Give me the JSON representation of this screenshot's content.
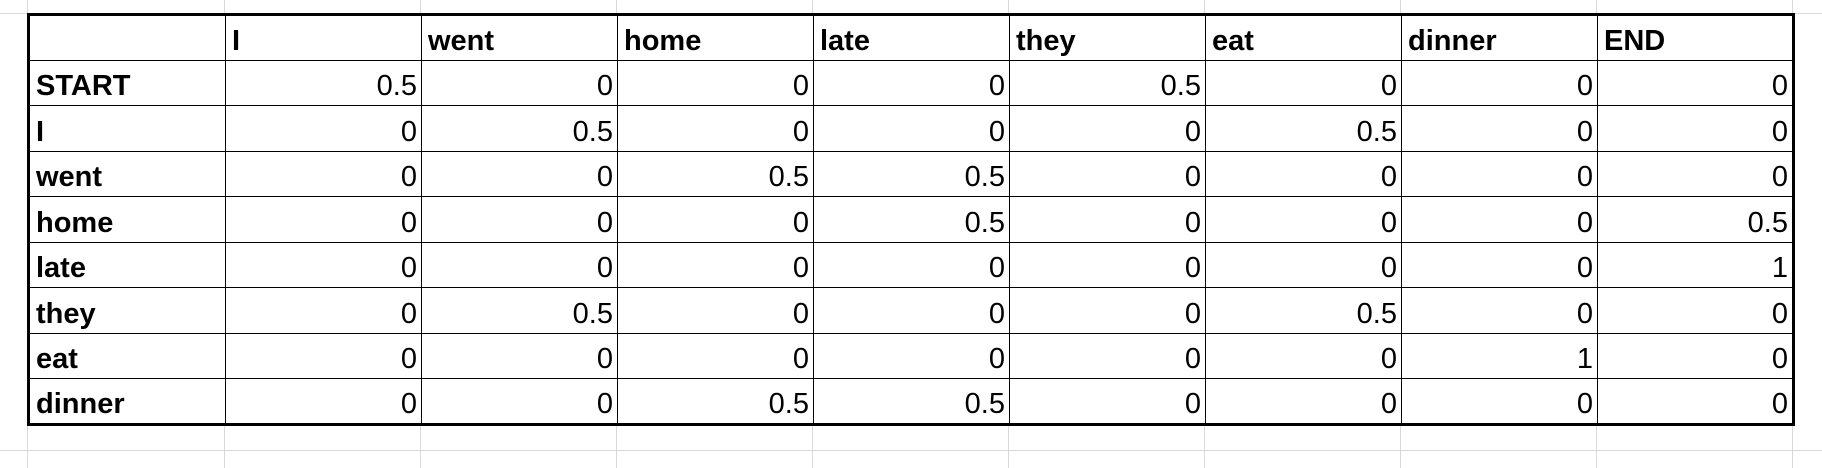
{
  "table": {
    "corner": "",
    "column_headers": [
      "I",
      "went",
      "home",
      "late",
      "they",
      "eat",
      "dinner",
      "END"
    ],
    "rows": [
      {
        "label": "START",
        "values": [
          "0.5",
          "0",
          "0",
          "0",
          "0.5",
          "0",
          "0",
          "0"
        ]
      },
      {
        "label": "I",
        "values": [
          "0",
          "0.5",
          "0",
          "0",
          "0",
          "0.5",
          "0",
          "0"
        ]
      },
      {
        "label": "went",
        "values": [
          "0",
          "0",
          "0.5",
          "0.5",
          "0",
          "0",
          "0",
          "0"
        ]
      },
      {
        "label": "home",
        "values": [
          "0",
          "0",
          "0",
          "0.5",
          "0",
          "0",
          "0",
          "0.5"
        ]
      },
      {
        "label": "late",
        "values": [
          "0",
          "0",
          "0",
          "0",
          "0",
          "0",
          "0",
          "1"
        ]
      },
      {
        "label": "they",
        "values": [
          "0",
          "0.5",
          "0",
          "0",
          "0",
          "0.5",
          "0",
          "0"
        ]
      },
      {
        "label": "eat",
        "values": [
          "0",
          "0",
          "0",
          "0",
          "0",
          "0",
          "1",
          "0"
        ]
      },
      {
        "label": "dinner",
        "values": [
          "0",
          "0",
          "0.5",
          "0.5",
          "0",
          "0",
          "0",
          "0"
        ]
      }
    ]
  },
  "colors": {
    "border": "#000000",
    "gridline": "#d9d9d9",
    "background": "#ffffff"
  }
}
